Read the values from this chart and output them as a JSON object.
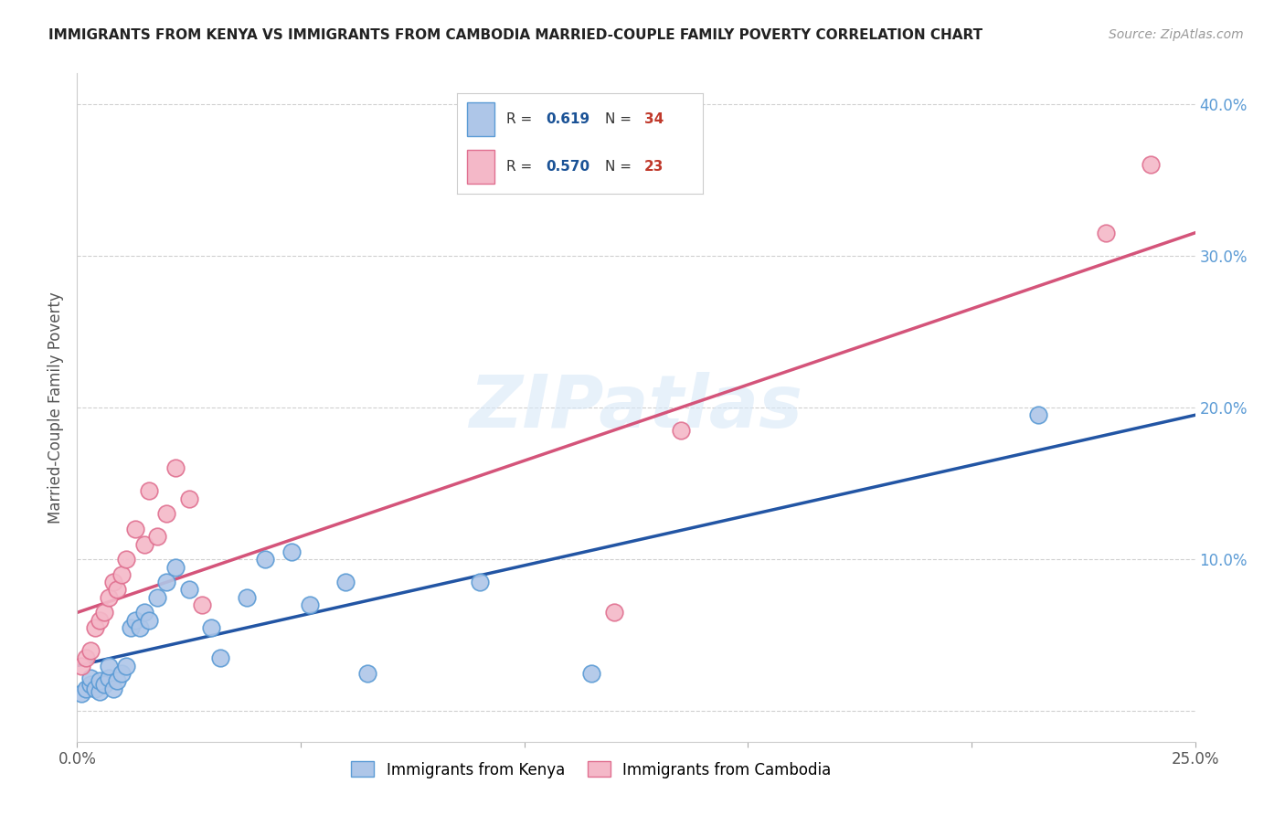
{
  "title": "IMMIGRANTS FROM KENYA VS IMMIGRANTS FROM CAMBODIA MARRIED-COUPLE FAMILY POVERTY CORRELATION CHART",
  "source": "Source: ZipAtlas.com",
  "ylabel": "Married-Couple Family Poverty",
  "xlim": [
    0.0,
    0.25
  ],
  "ylim": [
    -0.02,
    0.42
  ],
  "xticks": [
    0.0,
    0.05,
    0.1,
    0.15,
    0.2,
    0.25
  ],
  "yticks": [
    0.0,
    0.1,
    0.2,
    0.3,
    0.4
  ],
  "kenya_color": "#aec6e8",
  "kenya_edge_color": "#5b9bd5",
  "cambodia_color": "#f4b8c8",
  "cambodia_edge_color": "#e07090",
  "kenya_line_color": "#2255a4",
  "cambodia_line_color": "#d4547a",
  "kenya_R": "0.619",
  "kenya_N": "34",
  "cambodia_R": "0.570",
  "cambodia_N": "23",
  "watermark": "ZIPatlas",
  "kenya_x": [
    0.001,
    0.002,
    0.003,
    0.003,
    0.004,
    0.005,
    0.005,
    0.006,
    0.007,
    0.007,
    0.008,
    0.009,
    0.01,
    0.011,
    0.012,
    0.013,
    0.014,
    0.015,
    0.016,
    0.018,
    0.02,
    0.022,
    0.025,
    0.03,
    0.032,
    0.038,
    0.042,
    0.048,
    0.052,
    0.06,
    0.065,
    0.09,
    0.115,
    0.215
  ],
  "kenya_y": [
    0.012,
    0.015,
    0.018,
    0.022,
    0.015,
    0.013,
    0.02,
    0.018,
    0.022,
    0.03,
    0.015,
    0.02,
    0.025,
    0.03,
    0.055,
    0.06,
    0.055,
    0.065,
    0.06,
    0.075,
    0.085,
    0.095,
    0.08,
    0.055,
    0.035,
    0.075,
    0.1,
    0.105,
    0.07,
    0.085,
    0.025,
    0.085,
    0.025,
    0.195
  ],
  "cambodia_x": [
    0.001,
    0.002,
    0.003,
    0.004,
    0.005,
    0.006,
    0.007,
    0.008,
    0.009,
    0.01,
    0.011,
    0.013,
    0.015,
    0.016,
    0.018,
    0.02,
    0.022,
    0.025,
    0.028,
    0.12,
    0.135,
    0.23,
    0.24
  ],
  "cambodia_y": [
    0.03,
    0.035,
    0.04,
    0.055,
    0.06,
    0.065,
    0.075,
    0.085,
    0.08,
    0.09,
    0.1,
    0.12,
    0.11,
    0.145,
    0.115,
    0.13,
    0.16,
    0.14,
    0.07,
    0.065,
    0.185,
    0.315,
    0.36
  ],
  "background_color": "#ffffff",
  "grid_color": "#d0d0d0"
}
